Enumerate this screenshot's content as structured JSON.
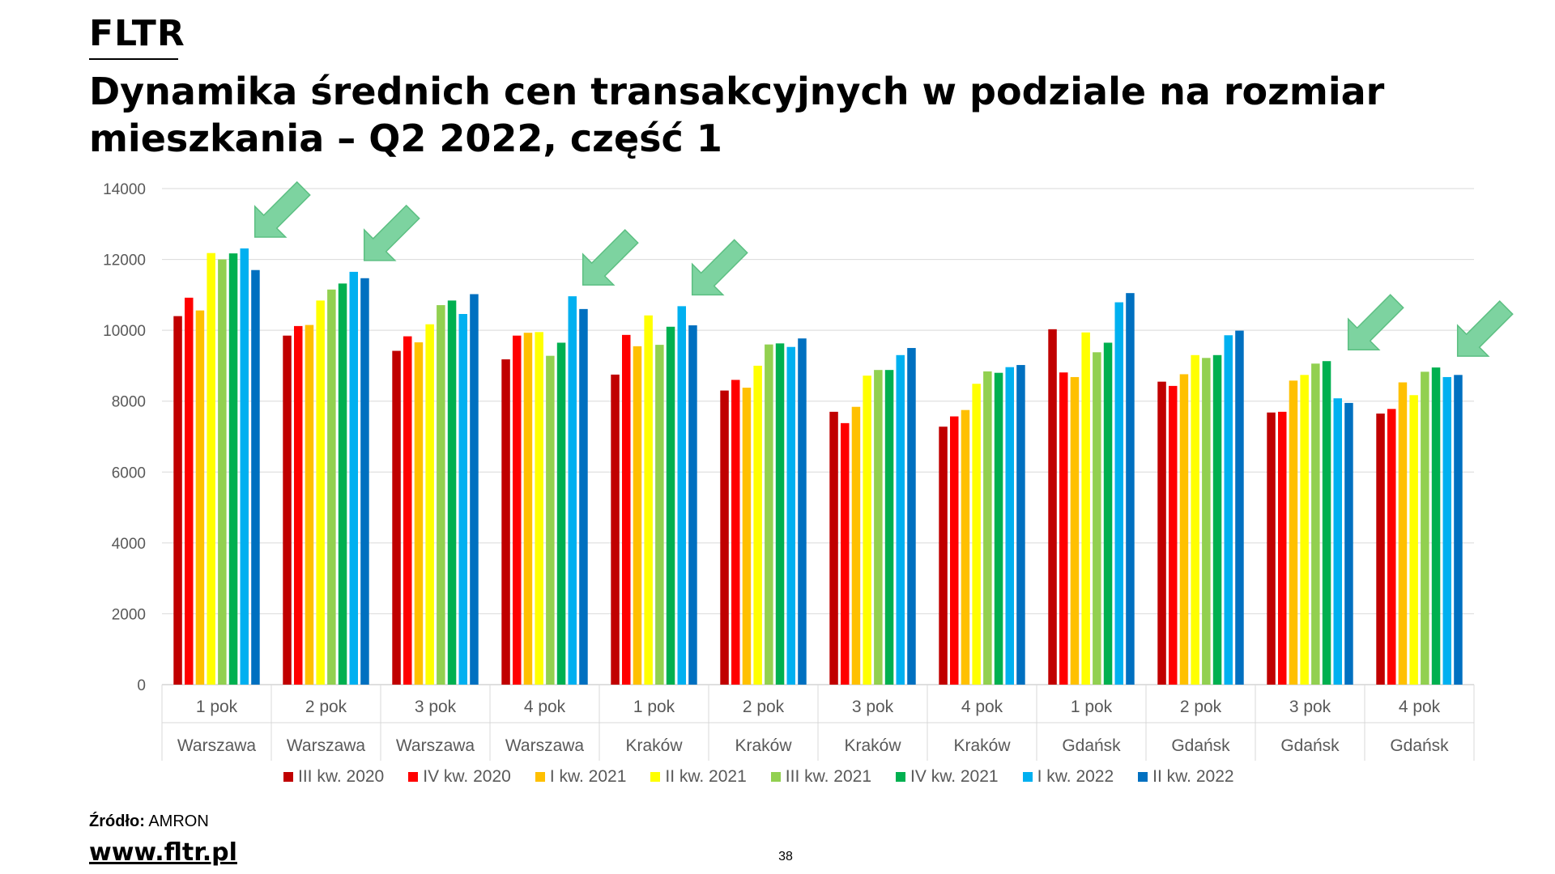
{
  "brand": "FLTR",
  "title": "Dynamika średnich cen transakcyjnych w podziale na rozmiar mieszkania – Q2 2022, część 1",
  "source_label": "Źródło:",
  "source_value": "AMRON",
  "website": "www.fltr.pl",
  "page_number": "38",
  "chart_data": {
    "type": "bar",
    "title": "",
    "xlabel": "",
    "ylabel": "",
    "ylim": [
      0,
      14000
    ],
    "yticks": [
      0,
      2000,
      4000,
      6000,
      8000,
      10000,
      12000,
      14000
    ],
    "grid": true,
    "legend_position": "bottom",
    "categories": [
      {
        "room": "1 pok",
        "city": "Warszawa"
      },
      {
        "room": "2 pok",
        "city": "Warszawa"
      },
      {
        "room": "3 pok",
        "city": "Warszawa"
      },
      {
        "room": "4 pok",
        "city": "Warszawa"
      },
      {
        "room": "1 pok",
        "city": "Kraków"
      },
      {
        "room": "2 pok",
        "city": "Kraków"
      },
      {
        "room": "3 pok",
        "city": "Kraków"
      },
      {
        "room": "4 pok",
        "city": "Kraków"
      },
      {
        "room": "1 pok",
        "city": "Gdańsk"
      },
      {
        "room": "2 pok",
        "city": "Gdańsk"
      },
      {
        "room": "3 pok",
        "city": "Gdańsk"
      },
      {
        "room": "4 pok",
        "city": "Gdańsk"
      }
    ],
    "series": [
      {
        "name": "III kw. 2020",
        "color": "#c00000",
        "values": [
          10400,
          9850,
          9420,
          9180,
          8750,
          8300,
          7700,
          7280,
          10030,
          8550,
          7680,
          7650
        ]
      },
      {
        "name": "IV kw. 2020",
        "color": "#ff0000",
        "values": [
          10920,
          10120,
          9830,
          9850,
          9870,
          8600,
          7380,
          7570,
          8810,
          8430,
          7700,
          7780
        ]
      },
      {
        "name": "I kw. 2021",
        "color": "#ffc000",
        "values": [
          10560,
          10150,
          9660,
          9930,
          9550,
          8380,
          7840,
          7750,
          8680,
          8760,
          8580,
          8530
        ]
      },
      {
        "name": "II kw. 2021",
        "color": "#ffff00",
        "values": [
          12180,
          10840,
          10170,
          9950,
          10420,
          9000,
          8720,
          8490,
          9940,
          9300,
          8740,
          8170
        ]
      },
      {
        "name": "III kw. 2021",
        "color": "#92d050",
        "values": [
          12000,
          11150,
          10710,
          9280,
          9590,
          9600,
          8880,
          8840,
          9380,
          9220,
          9060,
          8830
        ]
      },
      {
        "name": "IV kw. 2021",
        "color": "#00b050",
        "values": [
          12170,
          11320,
          10840,
          9650,
          10100,
          9630,
          8880,
          8800,
          9650,
          9300,
          9130,
          8950
        ]
      },
      {
        "name": "I kw. 2022",
        "color": "#00b0f0",
        "values": [
          12310,
          11650,
          10460,
          10960,
          10680,
          9530,
          9300,
          8960,
          10790,
          9860,
          8080,
          8680
        ]
      },
      {
        "name": "II kw. 2022",
        "color": "#0070c0",
        "values": [
          11700,
          11470,
          11020,
          10600,
          10140,
          9770,
          9500,
          9020,
          11050,
          9990,
          7950,
          8740
        ]
      }
    ],
    "annotations": {
      "arrow_color": "#7dd3a0",
      "arrow_category_indices": [
        0,
        1,
        3,
        4,
        10,
        11
      ]
    }
  }
}
